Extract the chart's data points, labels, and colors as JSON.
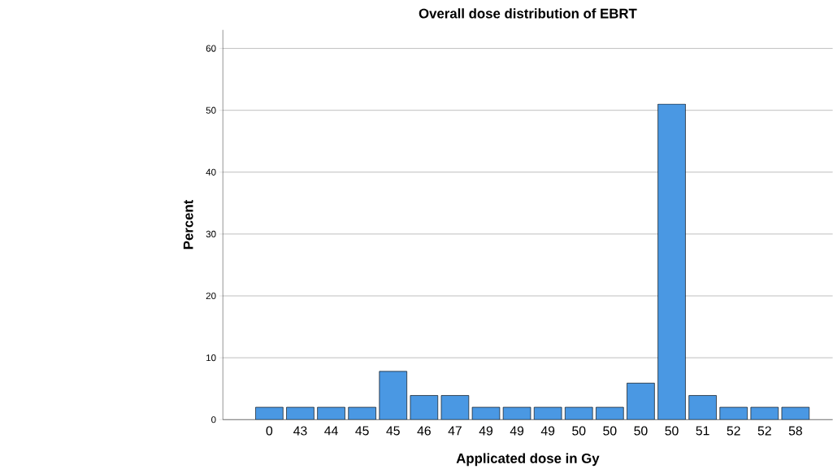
{
  "chart_data": {
    "type": "bar",
    "title": "Overall dose distribution of EBRT",
    "xlabel": "Applicated dose in Gy",
    "ylabel": "Percent",
    "categories": [
      "0",
      "43",
      "44",
      "45",
      "45",
      "46",
      "47",
      "49",
      "49",
      "49",
      "50",
      "50",
      "50",
      "50",
      "51",
      "52",
      "52",
      "58"
    ],
    "values": [
      2.0,
      2.0,
      2.0,
      2.0,
      7.8,
      3.9,
      3.9,
      2.0,
      2.0,
      2.0,
      2.0,
      2.0,
      5.9,
      51.0,
      3.9,
      2.0,
      2.0,
      2.0
    ],
    "color": "#4a98e3",
    "ylim": [
      0,
      63
    ],
    "yticks": [
      0,
      10,
      20,
      30,
      40,
      50,
      60
    ],
    "grid": "y"
  }
}
